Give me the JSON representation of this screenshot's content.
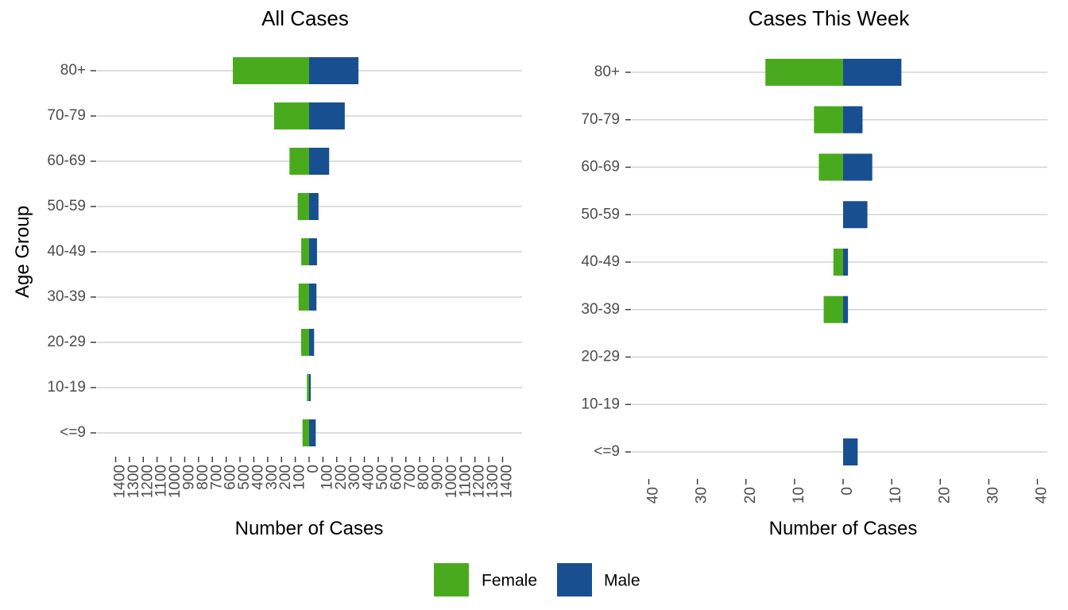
{
  "chart_data": [
    {
      "type": "bar",
      "orientation": "horizontal",
      "layout": "population-pyramid",
      "title": "All Cases",
      "xlabel": "Number of Cases",
      "ylabel": "Age Group",
      "categories": [
        "<=9",
        "10-19",
        "20-29",
        "30-39",
        "40-49",
        "50-59",
        "60-69",
        "70-79",
        "80+"
      ],
      "series": [
        {
          "name": "Female",
          "side": "left",
          "values": [
            48,
            16,
            58,
            76,
            57,
            83,
            142,
            253,
            552
          ]
        },
        {
          "name": "Male",
          "side": "right",
          "values": [
            48,
            12,
            36,
            53,
            57,
            68,
            145,
            258,
            357
          ]
        }
      ],
      "xlim": [
        -1400,
        1400
      ],
      "xticks": [
        -1400,
        -1300,
        -1200,
        -1100,
        -1000,
        -900,
        -800,
        -700,
        -600,
        -500,
        -400,
        -300,
        -200,
        -100,
        0,
        100,
        200,
        300,
        400,
        500,
        600,
        700,
        800,
        900,
        1000,
        1100,
        1200,
        1300,
        1400
      ],
      "xtick_labels": [
        "1400",
        "1300",
        "1200",
        "1100",
        "1000",
        "900",
        "800",
        "700",
        "600",
        "500",
        "400",
        "300",
        "200",
        "100",
        "0",
        "100",
        "200",
        "300",
        "400",
        "500",
        "600",
        "700",
        "800",
        "900",
        "1000",
        "1100",
        "1200",
        "1300",
        "1400"
      ],
      "grid": true
    },
    {
      "type": "bar",
      "orientation": "horizontal",
      "layout": "population-pyramid",
      "title": "Cases This Week",
      "xlabel": "Number of Cases",
      "ylabel": "",
      "categories": [
        "<=9",
        "10-19",
        "20-29",
        "30-39",
        "40-49",
        "50-59",
        "60-69",
        "70-79",
        "80+"
      ],
      "series": [
        {
          "name": "Female",
          "side": "left",
          "values": [
            0,
            0,
            0,
            4,
            2,
            0,
            5,
            6,
            16
          ]
        },
        {
          "name": "Male",
          "side": "right",
          "values": [
            3,
            0,
            0,
            1,
            1,
            5,
            6,
            4,
            12
          ]
        }
      ],
      "xlim": [
        -40,
        40
      ],
      "xticks": [
        -40,
        -30,
        -20,
        -10,
        0,
        10,
        20,
        30,
        40
      ],
      "xtick_labels": [
        "40",
        "30",
        "20",
        "10",
        "0",
        "10",
        "20",
        "30",
        "40"
      ],
      "grid": true
    }
  ],
  "legend": {
    "position": "bottom",
    "items": [
      {
        "label": "Female",
        "color": "#4aaa1e"
      },
      {
        "label": "Male",
        "color": "#184f91"
      }
    ]
  },
  "colors": {
    "female": "#4aaa1e",
    "male": "#184f91",
    "grid": "#d3d3d3"
  }
}
